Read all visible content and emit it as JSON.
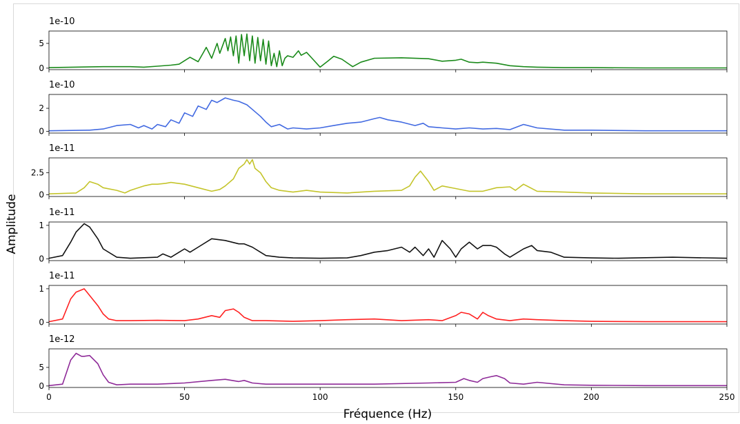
{
  "chart_data": {
    "type": "line",
    "xlabel": "Fréquence (Hz)",
    "ylabel": "Amplitude",
    "xlim": [
      0,
      250
    ],
    "xticks": [
      0,
      50,
      100,
      150,
      200,
      250
    ],
    "shared_x": true,
    "grid": false,
    "panels": [
      {
        "offset_label": "1e-10",
        "color": "#1a8a1a",
        "ylim": [
          -0.3,
          7.5
        ],
        "yticks": [
          0,
          5
        ],
        "x": [
          0,
          20,
          30,
          35,
          40,
          45,
          48,
          50,
          52,
          55,
          57,
          58,
          60,
          62,
          63,
          65,
          66,
          67,
          68,
          69,
          70,
          71,
          72,
          73,
          74,
          75,
          76,
          77,
          78,
          79,
          80,
          81,
          82,
          83,
          84,
          85,
          86,
          87,
          88,
          90,
          92,
          93,
          95,
          97,
          100,
          103,
          105,
          108,
          112,
          115,
          120,
          130,
          140,
          145,
          150,
          152,
          155,
          158,
          160,
          165,
          170,
          175,
          180,
          190,
          200,
          220,
          250
        ],
        "y": [
          0.1,
          0.3,
          0.3,
          0.2,
          0.4,
          0.6,
          0.8,
          1.5,
          2.2,
          1.3,
          3.2,
          4.2,
          2.0,
          5.0,
          3.0,
          6.0,
          3.5,
          6.3,
          2.5,
          6.5,
          1.0,
          6.8,
          2.5,
          6.9,
          1.5,
          6.5,
          1.0,
          6.2,
          1.5,
          5.8,
          0.8,
          5.5,
          0.5,
          3.0,
          0.3,
          3.5,
          0.5,
          2.0,
          2.5,
          2.2,
          3.5,
          2.6,
          3.2,
          2.0,
          0.2,
          1.5,
          2.4,
          1.8,
          0.3,
          1.2,
          2.0,
          2.1,
          1.9,
          1.4,
          1.6,
          1.8,
          1.2,
          1.1,
          1.2,
          1.0,
          0.5,
          0.3,
          0.2,
          0.1,
          0.1,
          0.05,
          0.05
        ]
      },
      {
        "offset_label": "1e-10",
        "color": "#4169e1",
        "ylim": [
          -0.15,
          3.2
        ],
        "yticks": [
          0,
          2
        ],
        "x": [
          0,
          15,
          20,
          25,
          30,
          33,
          35,
          38,
          40,
          43,
          45,
          48,
          50,
          53,
          55,
          58,
          60,
          62,
          65,
          68,
          70,
          73,
          75,
          78,
          80,
          82,
          85,
          88,
          90,
          95,
          100,
          105,
          110,
          115,
          120,
          122,
          125,
          130,
          135,
          138,
          140,
          145,
          150,
          155,
          160,
          165,
          170,
          175,
          180,
          190,
          200,
          220,
          250
        ],
        "y": [
          0.05,
          0.1,
          0.2,
          0.5,
          0.6,
          0.3,
          0.5,
          0.2,
          0.6,
          0.4,
          1.0,
          0.7,
          1.6,
          1.3,
          2.2,
          1.9,
          2.7,
          2.5,
          2.9,
          2.7,
          2.6,
          2.3,
          1.9,
          1.3,
          0.8,
          0.4,
          0.6,
          0.2,
          0.3,
          0.2,
          0.3,
          0.5,
          0.7,
          0.8,
          1.1,
          1.2,
          1.0,
          0.8,
          0.5,
          0.7,
          0.4,
          0.3,
          0.2,
          0.3,
          0.2,
          0.25,
          0.15,
          0.6,
          0.3,
          0.1,
          0.1,
          0.05,
          0.05
        ]
      },
      {
        "offset_label": "1e-11",
        "color": "#c4c42a",
        "ylim": [
          -0.2,
          4.2
        ],
        "yticks": [
          0.0,
          2.5
        ],
        "x": [
          0,
          10,
          13,
          15,
          18,
          20,
          25,
          28,
          30,
          33,
          35,
          38,
          40,
          43,
          45,
          50,
          55,
          60,
          63,
          65,
          68,
          70,
          72,
          73,
          74,
          75,
          76,
          78,
          80,
          82,
          85,
          90,
          95,
          100,
          110,
          120,
          130,
          133,
          135,
          137,
          140,
          142,
          145,
          150,
          155,
          160,
          165,
          170,
          172,
          175,
          180,
          190,
          200,
          220,
          250
        ],
        "y": [
          0.1,
          0.2,
          0.8,
          1.5,
          1.2,
          0.8,
          0.5,
          0.2,
          0.5,
          0.8,
          1.0,
          1.2,
          1.2,
          1.3,
          1.4,
          1.2,
          0.8,
          0.4,
          0.6,
          1.0,
          1.8,
          3.0,
          3.5,
          4.0,
          3.5,
          4.0,
          3.0,
          2.5,
          1.5,
          0.8,
          0.5,
          0.3,
          0.5,
          0.3,
          0.2,
          0.4,
          0.5,
          1.0,
          2.0,
          2.7,
          1.5,
          0.5,
          1.0,
          0.7,
          0.4,
          0.4,
          0.8,
          0.9,
          0.5,
          1.2,
          0.4,
          0.3,
          0.2,
          0.1,
          0.1
        ]
      },
      {
        "offset_label": "1e-11",
        "color": "#111111",
        "ylim": [
          -0.05,
          1.1
        ],
        "yticks": [
          0,
          1
        ],
        "x": [
          0,
          5,
          8,
          10,
          13,
          15,
          18,
          20,
          25,
          30,
          40,
          42,
          45,
          48,
          50,
          52,
          55,
          60,
          65,
          70,
          72,
          75,
          78,
          80,
          85,
          90,
          100,
          110,
          115,
          120,
          125,
          130,
          133,
          135,
          138,
          140,
          142,
          145,
          148,
          150,
          152,
          155,
          158,
          160,
          163,
          165,
          168,
          170,
          175,
          178,
          180,
          185,
          190,
          200,
          210,
          230,
          250
        ],
        "y": [
          0.02,
          0.1,
          0.5,
          0.8,
          1.05,
          0.95,
          0.6,
          0.3,
          0.05,
          0.02,
          0.05,
          0.15,
          0.05,
          0.2,
          0.3,
          0.2,
          0.35,
          0.6,
          0.55,
          0.45,
          0.45,
          0.35,
          0.2,
          0.1,
          0.05,
          0.03,
          0.02,
          0.03,
          0.1,
          0.2,
          0.25,
          0.35,
          0.2,
          0.35,
          0.1,
          0.3,
          0.05,
          0.55,
          0.3,
          0.05,
          0.3,
          0.5,
          0.3,
          0.4,
          0.4,
          0.35,
          0.15,
          0.05,
          0.3,
          0.4,
          0.25,
          0.2,
          0.05,
          0.03,
          0.02,
          0.05,
          0.02
        ]
      },
      {
        "offset_label": "1e-11",
        "color": "#ff2020",
        "ylim": [
          -0.05,
          1.1
        ],
        "yticks": [
          0,
          1
        ],
        "x": [
          0,
          5,
          8,
          10,
          13,
          15,
          18,
          20,
          22,
          25,
          30,
          40,
          50,
          55,
          60,
          63,
          65,
          68,
          70,
          72,
          75,
          80,
          90,
          100,
          110,
          120,
          130,
          140,
          145,
          150,
          152,
          155,
          158,
          160,
          162,
          165,
          170,
          175,
          180,
          190,
          200,
          220,
          250
        ],
        "y": [
          0.02,
          0.1,
          0.7,
          0.9,
          1.0,
          0.8,
          0.5,
          0.25,
          0.1,
          0.05,
          0.05,
          0.06,
          0.05,
          0.1,
          0.2,
          0.15,
          0.35,
          0.4,
          0.3,
          0.15,
          0.05,
          0.05,
          0.03,
          0.05,
          0.08,
          0.1,
          0.05,
          0.08,
          0.05,
          0.2,
          0.3,
          0.25,
          0.1,
          0.3,
          0.2,
          0.1,
          0.05,
          0.1,
          0.08,
          0.05,
          0.03,
          0.02,
          0.02
        ]
      },
      {
        "offset_label": "1e-12",
        "color": "#8e2a98",
        "ylim": [
          -0.4,
          10.0
        ],
        "yticks": [
          0,
          5
        ],
        "x": [
          0,
          5,
          8,
          10,
          12,
          13,
          15,
          18,
          20,
          22,
          25,
          30,
          40,
          50,
          60,
          65,
          70,
          72,
          75,
          80,
          100,
          120,
          140,
          150,
          153,
          155,
          158,
          160,
          163,
          165,
          168,
          170,
          175,
          180,
          190,
          200,
          220,
          250
        ],
        "y": [
          0.1,
          0.5,
          7.0,
          8.8,
          8.0,
          8.0,
          8.2,
          6.0,
          3.0,
          1.0,
          0.3,
          0.5,
          0.5,
          0.8,
          1.5,
          1.8,
          1.2,
          1.5,
          0.8,
          0.5,
          0.5,
          0.5,
          0.8,
          1.0,
          2.0,
          1.5,
          1.0,
          2.0,
          2.5,
          2.8,
          2.0,
          0.8,
          0.5,
          1.0,
          0.3,
          0.2,
          0.1,
          0.1
        ]
      }
    ]
  }
}
